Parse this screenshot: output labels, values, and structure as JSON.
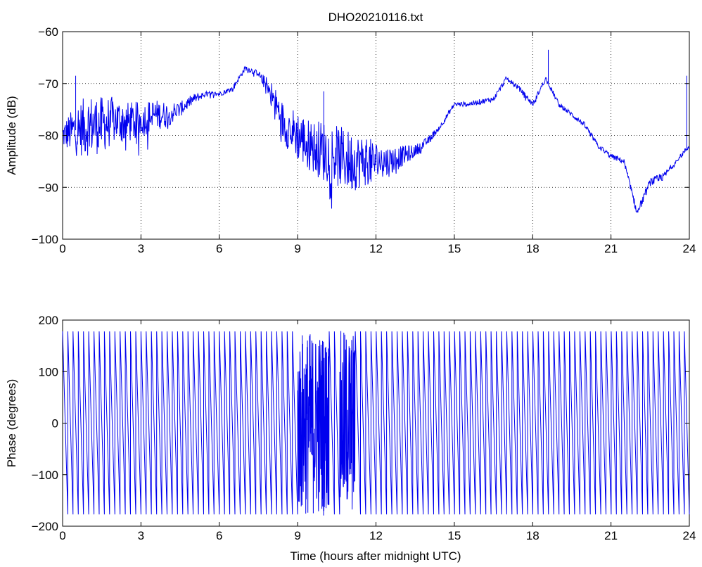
{
  "figure": {
    "title": "DHO20210116.txt",
    "line_color": "#0000ee"
  },
  "chart_data": [
    {
      "type": "line",
      "title": "DHO20210116.txt",
      "xlabel": "",
      "ylabel": "Amplitude (dB)",
      "xlim": [
        0,
        24
      ],
      "ylim": [
        -100,
        -60
      ],
      "xticks": [
        0,
        3,
        6,
        9,
        12,
        15,
        18,
        21,
        24
      ],
      "yticks": [
        -100,
        -90,
        -80,
        -70,
        -60
      ],
      "xtick_labels": [
        "0",
        "3",
        "6",
        "9",
        "12",
        "15",
        "18",
        "21",
        "24"
      ],
      "ytick_labels": [
        "−100",
        "−90",
        "−80",
        "−70",
        "−60"
      ],
      "grid": true,
      "series": [
        {
          "values_envelope": {
            "x": [
              0,
              0.5,
              1,
              1.5,
              2,
              2.5,
              3,
              3.5,
              4,
              4.5,
              5,
              5.5,
              6,
              6.5,
              7,
              7.5,
              8,
              8.5,
              9,
              9.5,
              10,
              10.5,
              11,
              11.5,
              12,
              12.5,
              13,
              13.5,
              14,
              14.5,
              15,
              15.5,
              16,
              16.5,
              17,
              17.5,
              18,
              18.5,
              19,
              19.5,
              20,
              20.5,
              21,
              21.5,
              22,
              22.5,
              23,
              23.5,
              24
            ],
            "y_mean": [
              -80,
              -79,
              -78,
              -78,
              -77,
              -77.5,
              -77,
              -76,
              -76,
              -75,
              -73,
              -72,
              -72,
              -71,
              -67,
              -68,
              -72,
              -78,
              -80,
              -82,
              -83,
              -84,
              -85,
              -85,
              -85,
              -85,
              -84,
              -83,
              -81,
              -78,
              -74,
              -74,
              -73.5,
              -73,
              -69,
              -71,
              -74,
              -69,
              -74,
              -76,
              -78,
              -82,
              -84,
              -85,
              -95,
              -89,
              -88,
              -85,
              -82
            ],
            "y_spread": [
              2.5,
              5,
              6,
              5.5,
              4.5,
              4,
              3.5,
              3,
              2.5,
              1.5,
              1,
              0.5,
              0.5,
              0.5,
              0.5,
              0.5,
              2.5,
              4,
              5,
              5,
              6,
              6,
              6,
              5,
              4,
              3,
              2,
              1.2,
              0.8,
              0.5,
              0.5,
              0.5,
              0.5,
              0.5,
              0.5,
              0.5,
              0.5,
              0.5,
              0.5,
              0.5,
              0.5,
              0.5,
              0.5,
              0.5,
              0.8,
              0.8,
              0.8,
              0.5,
              0.5
            ]
          },
          "spikes": [
            {
              "x": 0.5,
              "y": -68.5
            },
            {
              "x": 10,
              "y": -71.5
            },
            {
              "x": 18.6,
              "y": -63.5
            },
            {
              "x": 23.9,
              "y": -68.5
            }
          ]
        }
      ]
    },
    {
      "type": "line",
      "title": "",
      "xlabel": "Time (hours after midnight UTC)",
      "ylabel": "Phase (degrees)",
      "xlim": [
        0,
        24
      ],
      "ylim": [
        -200,
        200
      ],
      "xticks": [
        0,
        3,
        6,
        9,
        12,
        15,
        18,
        21,
        24
      ],
      "yticks": [
        -200,
        -100,
        0,
        100,
        200
      ],
      "xtick_labels": [
        "0",
        "3",
        "6",
        "9",
        "12",
        "15",
        "18",
        "21",
        "24"
      ],
      "ytick_labels": [
        "−200",
        "−100",
        "0",
        "100",
        "200"
      ],
      "grid": false,
      "series": [
        {
          "wrap_range": [
            -180,
            180
          ],
          "wrap_period_hours": 0.2,
          "disturbed_intervals": [
            [
              9.0,
              10.2
            ],
            [
              10.5,
              11.2
            ]
          ]
        }
      ]
    }
  ]
}
